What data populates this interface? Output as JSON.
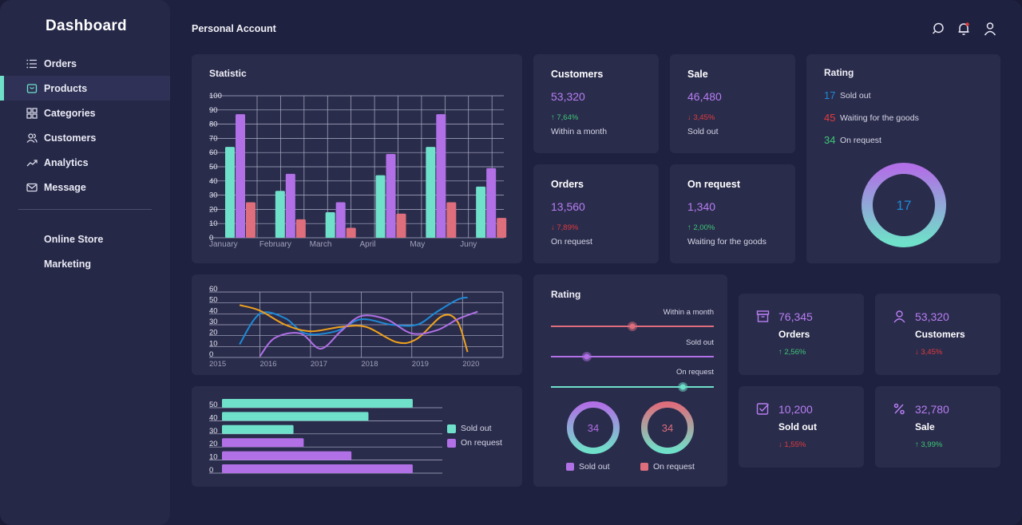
{
  "sidebar": {
    "brand": "Dashboard",
    "items": [
      {
        "label": "Orders",
        "icon": "list-icon"
      },
      {
        "label": "Products",
        "icon": "box-icon",
        "active": true
      },
      {
        "label": "Categories",
        "icon": "grid-icon"
      },
      {
        "label": "Customers",
        "icon": "users-icon"
      },
      {
        "label": "Analytics",
        "icon": "trend-icon"
      },
      {
        "label": "Message",
        "icon": "mail-icon"
      }
    ],
    "secondary": [
      "Online Store",
      "Marketing"
    ]
  },
  "header": {
    "title": "Personal Account",
    "icons": [
      "search-icon",
      "bell-icon",
      "user-icon"
    ]
  },
  "colors": {
    "teal": "#6fe0c9",
    "purple": "#b170e6",
    "pink": "#de6e7c",
    "blue": "#1e8ad6",
    "orange": "#f0a21b",
    "lilac": "#b77ef2",
    "up": "#3cc874",
    "down": "#e23b3b"
  },
  "statistic": {
    "title": "Statistic"
  },
  "stats": {
    "customers": {
      "label": "Customers",
      "value": "53,320",
      "delta": "↑ 7,64%",
      "dir": "up",
      "sub": "Within a month"
    },
    "sale": {
      "label": "Sale",
      "value": "46,480",
      "delta": "↓ 3,45%",
      "dir": "down",
      "sub": "Sold out"
    },
    "orders": {
      "label": "Orders",
      "value": "13,560",
      "delta": "↓ 7,89%",
      "dir": "down",
      "sub": "On request"
    },
    "onrequest": {
      "label": "On request",
      "value": "1,340",
      "delta": "↑ 2,00%",
      "dir": "up",
      "sub": "Waiting for the goods"
    }
  },
  "rating_top": {
    "title": "Rating",
    "rows": [
      {
        "num": "17",
        "text": "Sold out",
        "color": "#1e8ad6"
      },
      {
        "num": "45",
        "text": "Waiting for the goods",
        "color": "#e23b3b"
      },
      {
        "num": "34",
        "text": "On request",
        "color": "#3cc874"
      }
    ],
    "ring_value": "17"
  },
  "rating_mid": {
    "title": "Rating",
    "sliders": [
      {
        "label": "Within a month",
        "fraction": 0.5,
        "color": "#de6e7c"
      },
      {
        "label": "Sold out",
        "fraction": 0.22,
        "color": "#b170e6"
      },
      {
        "label": "On request",
        "fraction": 0.81,
        "color": "#6fe0c9"
      }
    ],
    "rings": [
      {
        "value": "34",
        "legend": "Sold out",
        "swatch": "#b170e6"
      },
      {
        "value": "34",
        "legend": "On request",
        "swatch": "#de6e7c"
      }
    ]
  },
  "kpis": [
    {
      "value": "76,345",
      "label": "Orders",
      "delta": "↑ 2,56%",
      "dir": "up",
      "icon": "archive-icon"
    },
    {
      "value": "53,320",
      "label": "Customers",
      "delta": "↓ 3,45%",
      "dir": "down",
      "icon": "user-icon"
    },
    {
      "value": "10,200",
      "label": "Sold out",
      "delta": "↓ 1,55%",
      "dir": "down",
      "icon": "checkbox-icon"
    },
    {
      "value": "32,780",
      "label": "Sale",
      "delta": "↑ 3,99%",
      "dir": "up",
      "icon": "percent-icon"
    }
  ],
  "chart_data": [
    {
      "type": "bar",
      "title": "Statistic",
      "categories": [
        "January",
        "February",
        "March",
        "April",
        "May",
        "Juny"
      ],
      "ylim": [
        0,
        100
      ],
      "yticks": [
        0,
        10,
        20,
        30,
        40,
        50,
        60,
        70,
        80,
        90,
        100
      ],
      "series": [
        {
          "color": "#6fe0c9",
          "values": [
            64,
            33,
            18,
            44,
            64,
            36
          ]
        },
        {
          "color": "#b170e6",
          "values": [
            87,
            45,
            25,
            59,
            87,
            49
          ]
        },
        {
          "color": "#de6e7c",
          "values": [
            25,
            13,
            7,
            17,
            25,
            14
          ]
        }
      ],
      "grid": true
    },
    {
      "type": "line",
      "x": [
        2015,
        2016,
        2017,
        2018,
        2019,
        2020
      ],
      "ylim": [
        0,
        60
      ],
      "yticks": [
        0,
        10,
        20,
        30,
        40,
        50,
        60
      ],
      "series": [
        {
          "color": "#1e8ad6",
          "points": [
            [
              2015.6,
              12
            ],
            [
              2016.0,
              40
            ],
            [
              2016.5,
              36
            ],
            [
              2016.9,
              22
            ],
            [
              2017.5,
              24
            ],
            [
              2018.0,
              35
            ],
            [
              2018.6,
              30
            ],
            [
              2019.1,
              30
            ],
            [
              2019.5,
              42
            ],
            [
              2019.9,
              53
            ],
            [
              2020.1,
              55
            ]
          ]
        },
        {
          "color": "#f0a21b",
          "points": [
            [
              2015.6,
              48
            ],
            [
              2016.0,
              43
            ],
            [
              2016.5,
              30
            ],
            [
              2017.0,
              24
            ],
            [
              2017.6,
              28
            ],
            [
              2018.1,
              28
            ],
            [
              2018.7,
              14
            ],
            [
              2019.1,
              17
            ],
            [
              2019.6,
              38
            ],
            [
              2019.9,
              33
            ],
            [
              2020.1,
              5
            ]
          ]
        },
        {
          "color": "#b170e6",
          "points": [
            [
              2016.0,
              1
            ],
            [
              2016.3,
              18
            ],
            [
              2016.8,
              22
            ],
            [
              2017.2,
              8
            ],
            [
              2017.6,
              24
            ],
            [
              2018.0,
              38
            ],
            [
              2018.5,
              35
            ],
            [
              2019.0,
              22
            ],
            [
              2019.5,
              25
            ],
            [
              2019.9,
              35
            ],
            [
              2020.3,
              42
            ]
          ]
        }
      ],
      "grid": true
    },
    {
      "type": "bar",
      "orientation": "horizontal",
      "yticks": [
        "50",
        "40",
        "30",
        "20",
        "10",
        "0"
      ],
      "xlim": [
        0,
        60
      ],
      "series": [
        {
          "name": "Sold out",
          "color": "#6fe0c9",
          "values": [
            56,
            43,
            21
          ]
        },
        {
          "name": "On request",
          "color": "#b170e6",
          "values": [
            24,
            38,
            56
          ]
        }
      ],
      "legend": "right"
    }
  ]
}
